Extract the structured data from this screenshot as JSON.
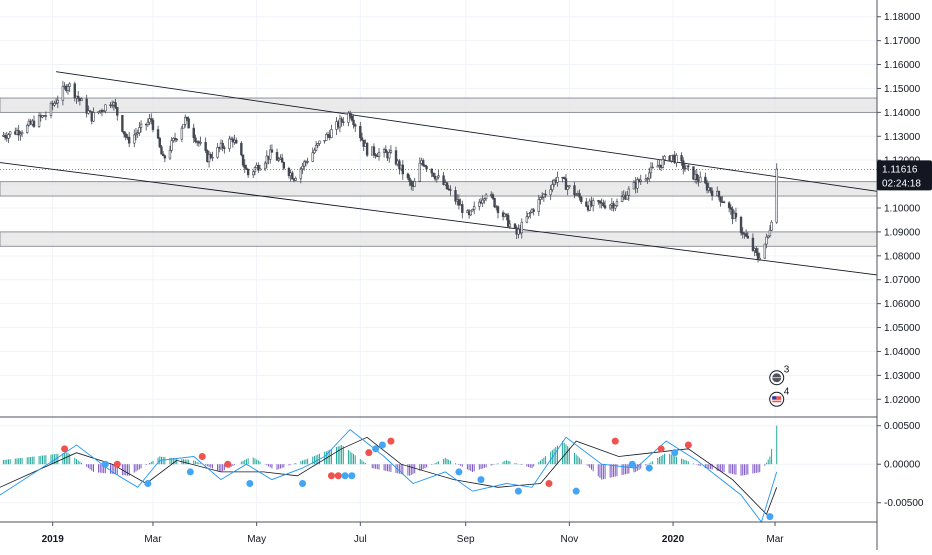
{
  "chart_data": [
    {
      "type": "candlestick",
      "instrument_hint": "price panel",
      "x_range": [
        "2018-12-01",
        "2020-04-30"
      ],
      "x_ticks": [
        {
          "date": "2019-01-01",
          "label": "2019",
          "bold": true
        },
        {
          "date": "2019-03-01",
          "label": "Mar",
          "bold": false
        },
        {
          "date": "2019-05-01",
          "label": "May",
          "bold": false
        },
        {
          "date": "2019-07-01",
          "label": "Jul",
          "bold": false
        },
        {
          "date": "2019-09-01",
          "label": "Sep",
          "bold": false
        },
        {
          "date": "2019-11-01",
          "label": "Nov",
          "bold": false
        },
        {
          "date": "2020-01-01",
          "label": "2020",
          "bold": true
        },
        {
          "date": "2020-03-01",
          "label": "Mar",
          "bold": false
        }
      ],
      "y_range": [
        1.013,
        1.187
      ],
      "y_ticks": [
        "1.18000",
        "1.17000",
        "1.16000",
        "1.15000",
        "1.14000",
        "1.13000",
        "1.12000",
        "1.11000",
        "1.10000",
        "1.09000",
        "1.08000",
        "1.07000",
        "1.06000",
        "1.05000",
        "1.04000",
        "1.03000",
        "1.02000"
      ],
      "last_price": {
        "value": 1.11616,
        "label": "1.11616",
        "countdown": "02:24:18",
        "color": "#131722"
      },
      "candle_color": "#434651",
      "grid": true,
      "zones": [
        {
          "from": 1.14,
          "to": 1.146
        },
        {
          "from": 1.105,
          "to": 1.111
        },
        {
          "from": 1.084,
          "to": 1.09
        }
      ],
      "trendlines": [
        {
          "x1": "2019-01-03",
          "y1": 1.157,
          "x2": "2020-04-30",
          "y2": 1.107
        },
        {
          "x1": "2018-12-01",
          "y1": 1.119,
          "x2": "2020-04-30",
          "y2": 1.072
        }
      ],
      "price_anchors": [
        {
          "date": "2018-12-01",
          "close": 1.13
        },
        {
          "date": "2018-12-15",
          "close": 1.133
        },
        {
          "date": "2018-12-28",
          "close": 1.139
        },
        {
          "date": "2019-01-10",
          "close": 1.152
        },
        {
          "date": "2019-01-24",
          "close": 1.138
        },
        {
          "date": "2019-02-05",
          "close": 1.145
        },
        {
          "date": "2019-02-14",
          "close": 1.128
        },
        {
          "date": "2019-02-28",
          "close": 1.137
        },
        {
          "date": "2019-03-07",
          "close": 1.12
        },
        {
          "date": "2019-03-20",
          "close": 1.137
        },
        {
          "date": "2019-04-02",
          "close": 1.121
        },
        {
          "date": "2019-04-17",
          "close": 1.129
        },
        {
          "date": "2019-04-26",
          "close": 1.114
        },
        {
          "date": "2019-05-10",
          "close": 1.123
        },
        {
          "date": "2019-05-23",
          "close": 1.113
        },
        {
          "date": "2019-06-07",
          "close": 1.127
        },
        {
          "date": "2019-06-25",
          "close": 1.14
        },
        {
          "date": "2019-07-05",
          "close": 1.124
        },
        {
          "date": "2019-07-20",
          "close": 1.122
        },
        {
          "date": "2019-08-01",
          "close": 1.108
        },
        {
          "date": "2019-08-06",
          "close": 1.12
        },
        {
          "date": "2019-08-20",
          "close": 1.109
        },
        {
          "date": "2019-09-03",
          "close": 1.096
        },
        {
          "date": "2019-09-13",
          "close": 1.107
        },
        {
          "date": "2019-10-01",
          "close": 1.089
        },
        {
          "date": "2019-10-10",
          "close": 1.099
        },
        {
          "date": "2019-10-25",
          "close": 1.113
        },
        {
          "date": "2019-11-12",
          "close": 1.101
        },
        {
          "date": "2019-11-29",
          "close": 1.102
        },
        {
          "date": "2019-12-13",
          "close": 1.112
        },
        {
          "date": "2019-12-31",
          "close": 1.122
        },
        {
          "date": "2020-01-14",
          "close": 1.113
        },
        {
          "date": "2020-01-31",
          "close": 1.103
        },
        {
          "date": "2020-02-11",
          "close": 1.09
        },
        {
          "date": "2020-02-20",
          "close": 1.079
        },
        {
          "date": "2020-02-26",
          "close": 1.088
        },
        {
          "date": "2020-02-29",
          "close": 1.1
        },
        {
          "date": "2020-03-02",
          "close": 1.1162
        }
      ],
      "markers": [
        {
          "type": "earnings-badge",
          "label": "3",
          "icon": "globe-icon",
          "date": "2020-03-02",
          "price": 1.029
        },
        {
          "type": "earnings-badge",
          "label": "4",
          "icon": "us-flag-icon",
          "date": "2020-03-02",
          "price": 1.02
        }
      ]
    },
    {
      "type": "histogram+line",
      "instrument_hint": "oscillator panel",
      "y_range": [
        -0.0075,
        0.006
      ],
      "y_ticks": [
        "0.00500",
        "0.00000",
        "-0.00500"
      ],
      "colors": {
        "hist_pos": "#26a69a",
        "hist_neg": "#7e57c2",
        "line_fast": "#2196f3",
        "line_slow": "#131722",
        "cross_up": "#42a5f5",
        "cross_down": "#ef5350"
      },
      "fast_anchors": [
        {
          "date": "2018-12-01",
          "value": -0.004
        },
        {
          "date": "2019-01-05",
          "value": 0.001
        },
        {
          "date": "2019-01-15",
          "value": 0.0025
        },
        {
          "date": "2019-02-05",
          "value": -0.001
        },
        {
          "date": "2019-02-20",
          "value": -0.003
        },
        {
          "date": "2019-03-05",
          "value": 0.0005
        },
        {
          "date": "2019-03-25",
          "value": 0.001
        },
        {
          "date": "2019-04-10",
          "value": -0.002
        },
        {
          "date": "2019-04-25",
          "value": 0.0
        },
        {
          "date": "2019-05-10",
          "value": -0.002
        },
        {
          "date": "2019-05-28",
          "value": -0.0005
        },
        {
          "date": "2019-06-10",
          "value": 0.001
        },
        {
          "date": "2019-06-25",
          "value": 0.0045
        },
        {
          "date": "2019-07-15",
          "value": 0.001
        },
        {
          "date": "2019-08-01",
          "value": -0.0025
        },
        {
          "date": "2019-08-20",
          "value": -0.001
        },
        {
          "date": "2019-09-05",
          "value": -0.0035
        },
        {
          "date": "2019-09-25",
          "value": -0.0025
        },
        {
          "date": "2019-10-10",
          "value": -0.003
        },
        {
          "date": "2019-10-30",
          "value": 0.0035
        },
        {
          "date": "2019-11-20",
          "value": 0.0
        },
        {
          "date": "2019-12-10",
          "value": -0.0005
        },
        {
          "date": "2019-12-28",
          "value": 0.003
        },
        {
          "date": "2020-01-15",
          "value": 0.0005
        },
        {
          "date": "2020-02-10",
          "value": -0.004
        },
        {
          "date": "2020-02-22",
          "value": -0.0075
        },
        {
          "date": "2020-03-02",
          "value": -0.001
        }
      ],
      "slow_anchors": [
        {
          "date": "2018-12-01",
          "value": -0.003
        },
        {
          "date": "2019-01-15",
          "value": 0.0015
        },
        {
          "date": "2019-02-05",
          "value": 0.0
        },
        {
          "date": "2019-02-25",
          "value": -0.0025
        },
        {
          "date": "2019-03-15",
          "value": 0.0005
        },
        {
          "date": "2019-04-10",
          "value": -0.001
        },
        {
          "date": "2019-05-05",
          "value": -0.001
        },
        {
          "date": "2019-05-25",
          "value": -0.0015
        },
        {
          "date": "2019-06-20",
          "value": 0.002
        },
        {
          "date": "2019-07-05",
          "value": 0.0035
        },
        {
          "date": "2019-07-25",
          "value": 0.0
        },
        {
          "date": "2019-08-25",
          "value": -0.002
        },
        {
          "date": "2019-09-20",
          "value": -0.003
        },
        {
          "date": "2019-10-15",
          "value": -0.0025
        },
        {
          "date": "2019-11-05",
          "value": 0.003
        },
        {
          "date": "2019-11-30",
          "value": 0.001
        },
        {
          "date": "2019-12-20",
          "value": 0.0015
        },
        {
          "date": "2020-01-10",
          "value": 0.002
        },
        {
          "date": "2020-02-05",
          "value": -0.002
        },
        {
          "date": "2020-02-25",
          "value": -0.0065
        },
        {
          "date": "2020-03-02",
          "value": -0.003
        }
      ],
      "hist_anchors": [
        {
          "date": "2018-12-01",
          "value": 0.0005
        },
        {
          "date": "2019-01-10",
          "value": 0.0015
        },
        {
          "date": "2019-01-25",
          "value": -0.001
        },
        {
          "date": "2019-02-15",
          "value": -0.0015
        },
        {
          "date": "2019-03-05",
          "value": 0.001
        },
        {
          "date": "2019-03-25",
          "value": 0.0005
        },
        {
          "date": "2019-04-10",
          "value": -0.001
        },
        {
          "date": "2019-04-28",
          "value": 0.001
        },
        {
          "date": "2019-05-12",
          "value": -0.0008
        },
        {
          "date": "2019-06-01",
          "value": 0.0008
        },
        {
          "date": "2019-06-20",
          "value": 0.0025
        },
        {
          "date": "2019-07-08",
          "value": -0.0005
        },
        {
          "date": "2019-07-30",
          "value": -0.0015
        },
        {
          "date": "2019-08-20",
          "value": 0.0008
        },
        {
          "date": "2019-09-05",
          "value": -0.001
        },
        {
          "date": "2019-09-25",
          "value": 0.0005
        },
        {
          "date": "2019-10-10",
          "value": -0.0005
        },
        {
          "date": "2019-10-28",
          "value": 0.003
        },
        {
          "date": "2019-11-20",
          "value": -0.002
        },
        {
          "date": "2019-12-10",
          "value": -0.001
        },
        {
          "date": "2019-12-28",
          "value": 0.0015
        },
        {
          "date": "2020-01-20",
          "value": -0.0005
        },
        {
          "date": "2020-02-10",
          "value": -0.0015
        },
        {
          "date": "2020-02-22",
          "value": -0.001
        },
        {
          "date": "2020-02-27",
          "value": 0.001
        },
        {
          "date": "2020-03-02",
          "value": 0.005
        }
      ],
      "crosses": [
        {
          "date": "2019-01-08",
          "value": 0.002,
          "kind": "down"
        },
        {
          "date": "2019-02-01",
          "value": 0.0,
          "kind": "up"
        },
        {
          "date": "2019-02-08",
          "value": 0.0,
          "kind": "down"
        },
        {
          "date": "2019-02-26",
          "value": -0.0025,
          "kind": "up"
        },
        {
          "date": "2019-03-23",
          "value": -0.001,
          "kind": "up"
        },
        {
          "date": "2019-03-30",
          "value": 0.001,
          "kind": "down"
        },
        {
          "date": "2019-04-14",
          "value": 0.0,
          "kind": "down"
        },
        {
          "date": "2019-04-27",
          "value": -0.0025,
          "kind": "up"
        },
        {
          "date": "2019-05-28",
          "value": -0.0025,
          "kind": "up"
        },
        {
          "date": "2019-06-14",
          "value": -0.0015,
          "kind": "down"
        },
        {
          "date": "2019-06-18",
          "value": -0.0015,
          "kind": "down"
        },
        {
          "date": "2019-06-22",
          "value": -0.0015,
          "kind": "up"
        },
        {
          "date": "2019-06-26",
          "value": -0.0015,
          "kind": "up"
        },
        {
          "date": "2019-07-06",
          "value": 0.0015,
          "kind": "down"
        },
        {
          "date": "2019-07-10",
          "value": 0.002,
          "kind": "up"
        },
        {
          "date": "2019-07-14",
          "value": 0.0025,
          "kind": "up"
        },
        {
          "date": "2019-07-19",
          "value": 0.003,
          "kind": "down"
        },
        {
          "date": "2019-08-28",
          "value": -0.001,
          "kind": "up"
        },
        {
          "date": "2019-09-10",
          "value": -0.002,
          "kind": "up"
        },
        {
          "date": "2019-10-02",
          "value": -0.0035,
          "kind": "up"
        },
        {
          "date": "2019-10-20",
          "value": -0.0025,
          "kind": "down"
        },
        {
          "date": "2019-11-05",
          "value": -0.0035,
          "kind": "up"
        },
        {
          "date": "2019-11-28",
          "value": 0.003,
          "kind": "down"
        },
        {
          "date": "2019-12-08",
          "value": 0.0,
          "kind": "up"
        },
        {
          "date": "2019-12-18",
          "value": -0.0005,
          "kind": "up"
        },
        {
          "date": "2019-12-25",
          "value": 0.002,
          "kind": "down"
        },
        {
          "date": "2020-01-02",
          "value": 0.0015,
          "kind": "up"
        },
        {
          "date": "2020-01-10",
          "value": 0.0025,
          "kind": "down"
        },
        {
          "date": "2020-02-27",
          "value": -0.0068,
          "kind": "up"
        }
      ]
    }
  ]
}
